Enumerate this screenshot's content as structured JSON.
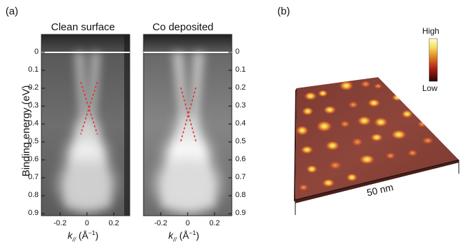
{
  "figure": {
    "panel_a": {
      "label": "(a)",
      "left_title": "Clean surface",
      "right_title": "Co deposited",
      "y_axis_label": "Binding energy (eV)",
      "y_ticks": [
        "0",
        "0.1",
        "0.2",
        "0.3",
        "0.4",
        "0.5",
        "0.6",
        "0.7",
        "0.8",
        "0.9"
      ],
      "x_ticks": [
        "-0.2",
        "0",
        "0.2"
      ],
      "x_axis_label": {
        "k": "k",
        "sub": "//",
        "unit_open": " (Å",
        "exp": "−1",
        "unit_close": ")"
      }
    },
    "panel_b": {
      "label": "(b)",
      "colorbar_high": "High",
      "colorbar_low": "Low",
      "scale_label": "50 nm"
    }
  },
  "colors": {
    "dirac_dash": "#e0302a",
    "fermi_line": "#ffffff",
    "surface_base": "#8a4238",
    "island_hot": "#f7e060"
  }
}
